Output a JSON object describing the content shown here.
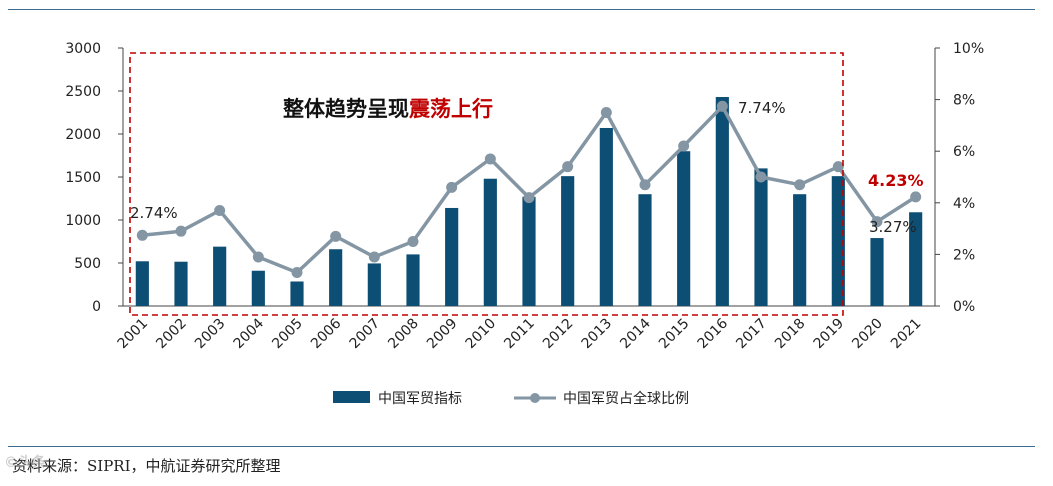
{
  "chart_data": {
    "type": "bar+line",
    "categories": [
      "2001",
      "2002",
      "2003",
      "2004",
      "2005",
      "2006",
      "2007",
      "2008",
      "2009",
      "2010",
      "2011",
      "2012",
      "2013",
      "2014",
      "2015",
      "2016",
      "2017",
      "2018",
      "2019",
      "2020",
      "2021"
    ],
    "series": [
      {
        "name": "中国军贸指标",
        "type": "bar",
        "axis": "left",
        "color": "#0d4e74",
        "values": [
          520,
          515,
          690,
          410,
          285,
          660,
          495,
          600,
          1140,
          1480,
          1270,
          1510,
          2070,
          1300,
          1800,
          2430,
          1600,
          1300,
          1510,
          790,
          1090
        ]
      },
      {
        "name": "中国军贸占全球比例",
        "type": "line",
        "axis": "right",
        "unit": "%",
        "color": "#8496a3",
        "values": [
          2.74,
          2.9,
          3.7,
          1.9,
          1.3,
          2.7,
          1.9,
          2.5,
          4.6,
          5.7,
          4.2,
          5.4,
          7.5,
          4.7,
          6.2,
          7.74,
          5.0,
          4.7,
          5.4,
          3.27,
          4.23
        ]
      }
    ],
    "left_axis": {
      "ylim": [
        0,
        3000
      ],
      "ticks": [
        "0",
        "500",
        "1000",
        "1500",
        "2000",
        "2500",
        "3000"
      ]
    },
    "right_axis": {
      "ylim": [
        0,
        10
      ],
      "ticks": [
        "0%",
        "2%",
        "4%",
        "6%",
        "8%",
        "10%"
      ]
    },
    "annotations": {
      "title_black": "整体趋势呈现",
      "title_red": "震荡上行",
      "label_2001": "2.74%",
      "label_2016": "7.74%",
      "label_2020": "3.27%",
      "label_2021": "4.23%"
    },
    "legend": [
      "中国军贸指标",
      "中国军贸占全球比例"
    ],
    "colors": {
      "bar": "#0d4e74",
      "line": "#8496a3",
      "highlight": "#c00000",
      "box": "#c00000"
    }
  },
  "footer": {
    "source": "资料来源：SIPRI，中航证券研究所整理"
  },
  "watermark": "©头条"
}
